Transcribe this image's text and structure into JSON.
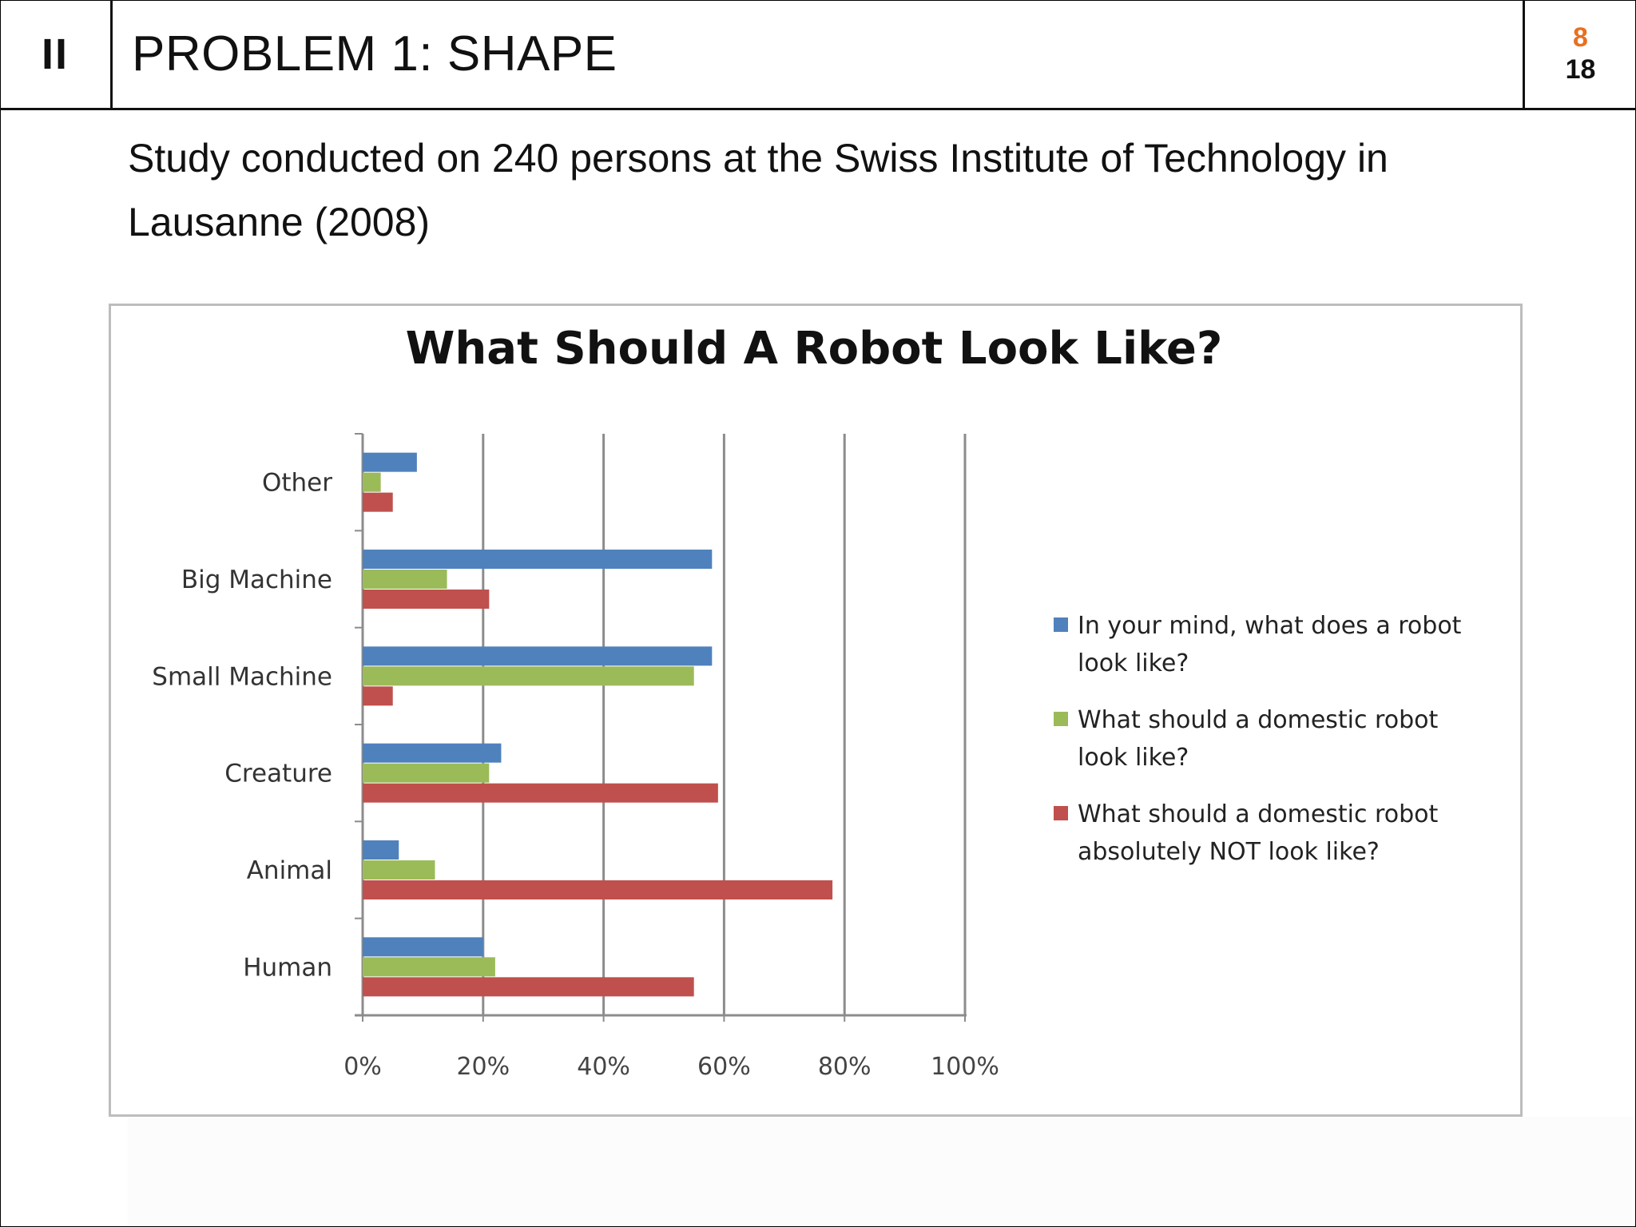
{
  "header": {
    "section": "II",
    "title": "PROBLEM 1: SHAPE",
    "page_current": "8",
    "page_total": "18"
  },
  "body": {
    "description": "Study conducted on 240 persons at the Swiss Institute of Technology in Lausanne (2008)"
  },
  "chart_data": {
    "type": "bar",
    "orientation": "horizontal",
    "title": "What Should A Robot Look Like?",
    "categories": [
      "Other",
      "Big Machine",
      "Small Machine",
      "Creature",
      "Animal",
      "Human"
    ],
    "series": [
      {
        "name": "In your mind, what does a robot look like?",
        "color": "#4f81bd",
        "values": [
          9,
          58,
          58,
          23,
          6,
          20
        ]
      },
      {
        "name": "What should a domestic robot look like?",
        "color": "#9bbb59",
        "values": [
          3,
          14,
          55,
          21,
          12,
          22
        ]
      },
      {
        "name": "What should a domestic robot absolutely NOT look like?",
        "color": "#c0504d",
        "values": [
          5,
          21,
          5,
          59,
          78,
          55
        ]
      }
    ],
    "xlim": [
      0,
      100
    ],
    "x_ticks": [
      "0%",
      "20%",
      "40%",
      "60%",
      "80%",
      "100%"
    ],
    "unit": "%",
    "grid": "vertical",
    "legend_position": "right"
  }
}
